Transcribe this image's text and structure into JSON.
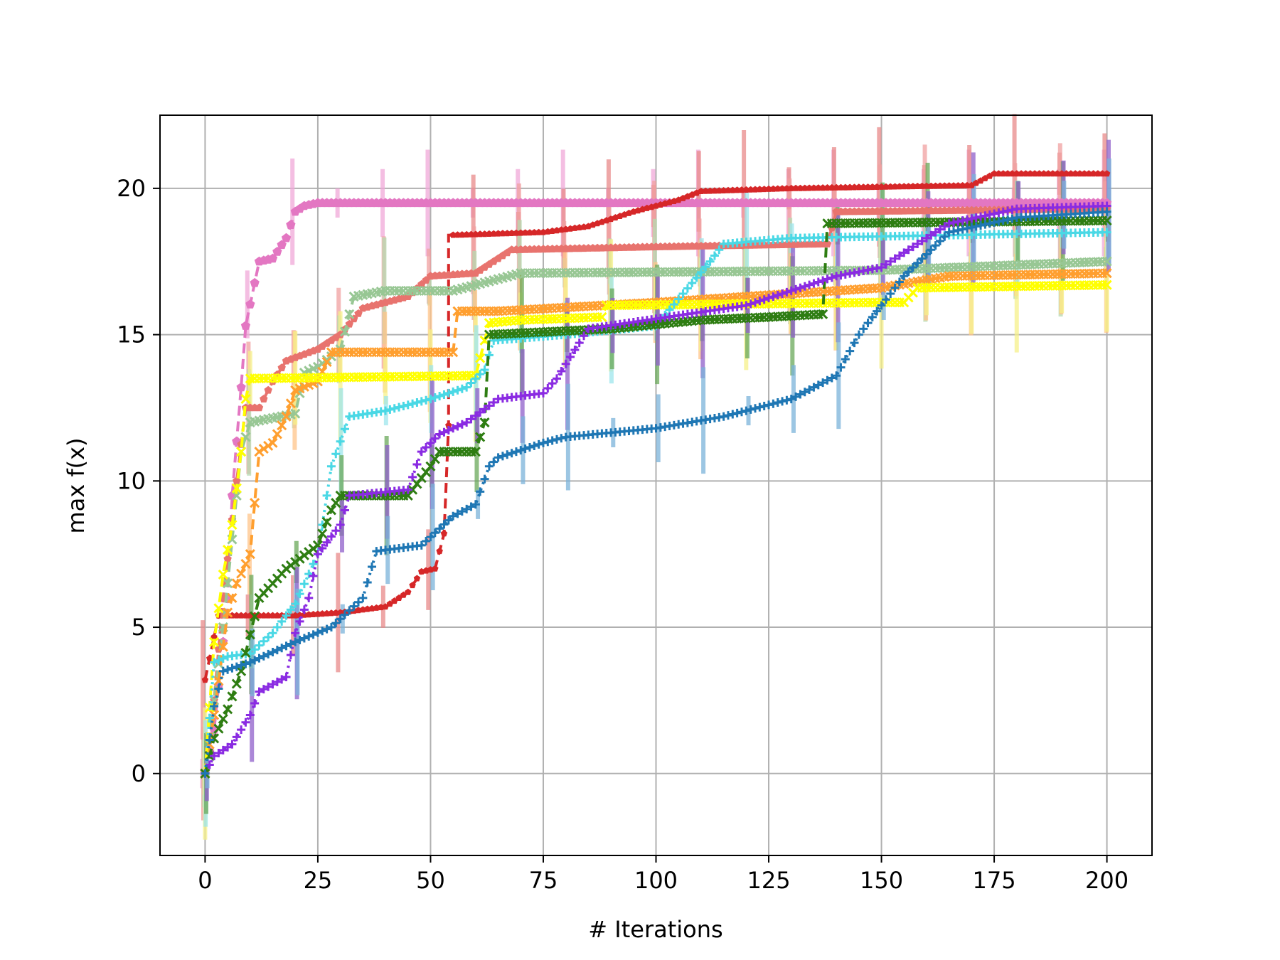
{
  "chart_data": {
    "type": "line",
    "title": "",
    "xlabel": "# Iterations",
    "ylabel": "max f(x)",
    "xlim": [
      -10,
      210
    ],
    "ylim": [
      -2.8,
      22.5
    ],
    "xticks": [
      0,
      25,
      50,
      75,
      100,
      125,
      150,
      175,
      200
    ],
    "yticks": [
      0,
      5,
      10,
      15,
      20
    ],
    "grid": true,
    "legend": "none",
    "series": [
      {
        "color": "#e377c2",
        "marker": "pentagon",
        "linestyle": "dashed",
        "markersize": 14,
        "errcolor": "#f0a8d8",
        "points": [
          [
            0,
            0
          ],
          [
            2,
            1.5
          ],
          [
            3,
            3
          ],
          [
            5,
            6
          ],
          [
            6,
            9.5
          ],
          [
            8,
            13.2
          ],
          [
            9,
            15.3
          ],
          [
            12,
            17.5
          ],
          [
            15,
            17.6
          ],
          [
            18,
            18.3
          ],
          [
            20,
            19.2
          ],
          [
            22,
            19.4
          ],
          [
            25,
            19.5
          ],
          [
            200,
            19.5
          ]
        ]
      },
      {
        "color": "#d62728",
        "marker": "pentagon",
        "linestyle": "dashed",
        "markersize": 10,
        "errcolor": "#e88a8a",
        "points": [
          [
            0,
            3.2
          ],
          [
            3,
            5.4
          ],
          [
            20,
            5.4
          ],
          [
            30,
            5.5
          ],
          [
            40,
            5.7
          ],
          [
            45,
            6.2
          ],
          [
            48,
            6.9
          ],
          [
            51,
            7.0
          ],
          [
            53,
            8.2
          ],
          [
            54,
            11.9
          ],
          [
            54,
            18.4
          ],
          [
            75,
            18.5
          ],
          [
            85,
            18.7
          ],
          [
            95,
            19.2
          ],
          [
            105,
            19.6
          ],
          [
            110,
            19.9
          ],
          [
            130,
            20.0
          ],
          [
            170,
            20.1
          ],
          [
            175,
            20.5
          ],
          [
            200,
            20.5
          ]
        ]
      },
      {
        "color": "#e8736e",
        "marker": "pentagon",
        "linestyle": "dashed",
        "markersize": 12,
        "errcolor": "#f0a0a0",
        "points": [
          [
            0,
            0
          ],
          [
            2,
            2.5
          ],
          [
            4,
            6
          ],
          [
            7,
            10
          ],
          [
            9,
            12.5
          ],
          [
            12,
            12.5
          ],
          [
            15,
            13.4
          ],
          [
            18,
            14.1
          ],
          [
            25,
            14.5
          ],
          [
            30,
            15.0
          ],
          [
            35,
            15.9
          ],
          [
            45,
            16.3
          ],
          [
            50,
            17.0
          ],
          [
            60,
            17.1
          ],
          [
            68,
            17.9
          ],
          [
            100,
            18.0
          ],
          [
            138,
            18.1
          ],
          [
            140,
            19.2
          ],
          [
            200,
            19.3
          ]
        ]
      },
      {
        "color": "#98c794",
        "marker": "x",
        "linestyle": "dashed",
        "markersize": 12,
        "errcolor": "#b5dab0",
        "points": [
          [
            0,
            0
          ],
          [
            2,
            2.5
          ],
          [
            4,
            5
          ],
          [
            6,
            8
          ],
          [
            8,
            11
          ],
          [
            10,
            12
          ],
          [
            20,
            12.3
          ],
          [
            22,
            13.7
          ],
          [
            25,
            13.9
          ],
          [
            30,
            14.5
          ],
          [
            33,
            16.3
          ],
          [
            40,
            16.5
          ],
          [
            55,
            16.5
          ],
          [
            70,
            17.1
          ],
          [
            150,
            17.2
          ],
          [
            200,
            17.5
          ]
        ]
      },
      {
        "color": "#ff9f2f",
        "marker": "x",
        "linestyle": "dashed",
        "markersize": 12,
        "errcolor": "#ffc48a",
        "points": [
          [
            0,
            0
          ],
          [
            2,
            2
          ],
          [
            5,
            5.5
          ],
          [
            7,
            6.5
          ],
          [
            10,
            7.5
          ],
          [
            12,
            11
          ],
          [
            15,
            11.3
          ],
          [
            18,
            12.2
          ],
          [
            20,
            13.1
          ],
          [
            25,
            13.4
          ],
          [
            28,
            14.4
          ],
          [
            55,
            14.4
          ],
          [
            56,
            15.8
          ],
          [
            65,
            15.8
          ],
          [
            100,
            16.1
          ],
          [
            120,
            16.3
          ],
          [
            150,
            16.6
          ],
          [
            165,
            17.0
          ],
          [
            200,
            17.1
          ]
        ]
      },
      {
        "color": "#ffff00",
        "marker": "x",
        "linestyle": "dashed",
        "markersize": 12,
        "errcolor": "#f5f08a",
        "points": [
          [
            0,
            0
          ],
          [
            2,
            4.5
          ],
          [
            4,
            6.8
          ],
          [
            6,
            8.5
          ],
          [
            8,
            11
          ],
          [
            9,
            12.8
          ],
          [
            10,
            13.5
          ],
          [
            60,
            13.6
          ],
          [
            63,
            15.4
          ],
          [
            70,
            15.5
          ],
          [
            88,
            15.6
          ],
          [
            89,
            16.0
          ],
          [
            150,
            16.1
          ],
          [
            155,
            16.1
          ],
          [
            158,
            16.6
          ],
          [
            200,
            16.7
          ]
        ]
      },
      {
        "color": "#4ad8e5",
        "marker": "plus",
        "linestyle": "dotted",
        "markersize": 12,
        "errcolor": "#9ee6ec",
        "points": [
          [
            0,
            0
          ],
          [
            2,
            3.8
          ],
          [
            5,
            4.0
          ],
          [
            10,
            4.1
          ],
          [
            15,
            4.8
          ],
          [
            20,
            5.8
          ],
          [
            25,
            7.5
          ],
          [
            28,
            10.5
          ],
          [
            32,
            12.2
          ],
          [
            40,
            12.4
          ],
          [
            50,
            12.8
          ],
          [
            58,
            13.2
          ],
          [
            62,
            13.8
          ],
          [
            64,
            14.8
          ],
          [
            80,
            15.0
          ],
          [
            100,
            15.3
          ],
          [
            112,
            17.5
          ],
          [
            115,
            18.1
          ],
          [
            130,
            18.3
          ],
          [
            200,
            18.5
          ]
        ]
      },
      {
        "color": "#2e7d12",
        "marker": "x",
        "linestyle": "dashed",
        "markersize": 12,
        "errcolor": "#6aa85a",
        "points": [
          [
            0,
            0
          ],
          [
            2,
            1.2
          ],
          [
            5,
            2.2
          ],
          [
            8,
            3.5
          ],
          [
            12,
            6.0
          ],
          [
            18,
            7.0
          ],
          [
            25,
            7.8
          ],
          [
            28,
            9.0
          ],
          [
            30,
            9.5
          ],
          [
            45,
            9.5
          ],
          [
            50,
            10.5
          ],
          [
            52,
            11.0
          ],
          [
            60,
            11.0
          ],
          [
            62,
            12.0
          ],
          [
            63,
            15.0
          ],
          [
            90,
            15.2
          ],
          [
            110,
            15.5
          ],
          [
            125,
            15.6
          ],
          [
            137,
            15.7
          ],
          [
            138,
            18.8
          ],
          [
            200,
            18.9
          ]
        ]
      },
      {
        "color": "#8a2be2",
        "marker": "plus",
        "linestyle": "dotted",
        "markersize": 12,
        "errcolor": "#8f5fc9",
        "points": [
          [
            0,
            0
          ],
          [
            2,
            0.6
          ],
          [
            6,
            1.0
          ],
          [
            10,
            2.0
          ],
          [
            12,
            2.8
          ],
          [
            18,
            3.3
          ],
          [
            20,
            4.8
          ],
          [
            23,
            6.0
          ],
          [
            25,
            7.5
          ],
          [
            30,
            8.5
          ],
          [
            32,
            9.5
          ],
          [
            45,
            9.7
          ],
          [
            48,
            11.0
          ],
          [
            52,
            11.6
          ],
          [
            58,
            12.0
          ],
          [
            65,
            12.8
          ],
          [
            75,
            13.0
          ],
          [
            78,
            13.5
          ],
          [
            80,
            14.0
          ],
          [
            85,
            15.2
          ],
          [
            120,
            16.0
          ],
          [
            140,
            17.0
          ],
          [
            150,
            17.3
          ],
          [
            155,
            17.8
          ],
          [
            165,
            18.8
          ],
          [
            180,
            19.3
          ],
          [
            200,
            19.4
          ]
        ]
      },
      {
        "color": "#1f77b4",
        "marker": "plus",
        "linestyle": "dotted",
        "markersize": 12,
        "errcolor": "#7bb3d9",
        "points": [
          [
            0,
            0
          ],
          [
            2,
            2.3
          ],
          [
            4,
            3.5
          ],
          [
            10,
            3.8
          ],
          [
            20,
            4.5
          ],
          [
            28,
            5.0
          ],
          [
            35,
            6.0
          ],
          [
            38,
            7.6
          ],
          [
            48,
            7.8
          ],
          [
            55,
            8.8
          ],
          [
            60,
            9.2
          ],
          [
            63,
            10.5
          ],
          [
            65,
            10.8
          ],
          [
            75,
            11.3
          ],
          [
            80,
            11.5
          ],
          [
            100,
            11.8
          ],
          [
            115,
            12.2
          ],
          [
            125,
            12.6
          ],
          [
            130,
            12.8
          ],
          [
            140,
            13.6
          ],
          [
            145,
            15.0
          ],
          [
            150,
            16.0
          ],
          [
            155,
            17.0
          ],
          [
            165,
            18.5
          ],
          [
            180,
            19.0
          ],
          [
            200,
            19.2
          ]
        ]
      }
    ]
  }
}
